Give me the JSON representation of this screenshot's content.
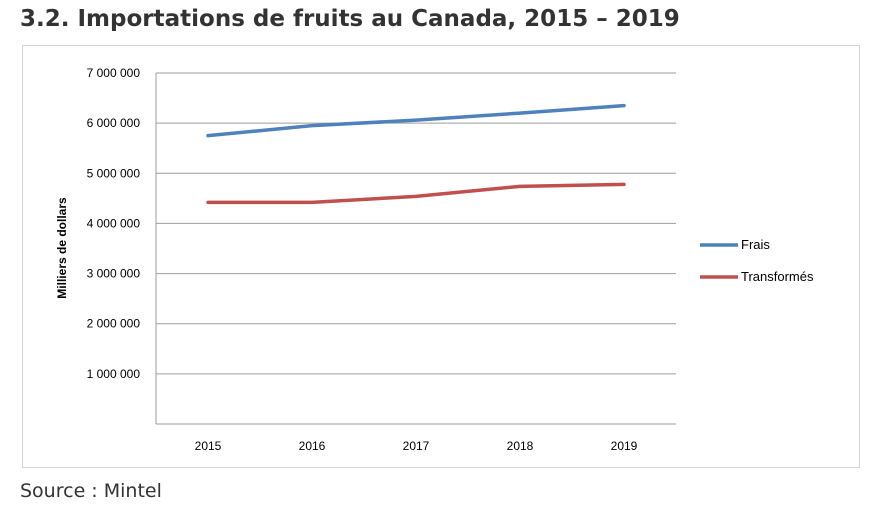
{
  "heading": "3.2. Importations de fruits au Canada, 2015 – 2019",
  "source": "Source : Mintel",
  "chart_data": {
    "type": "line",
    "title": "",
    "xlabel": "",
    "ylabel": "Milliers de dollars",
    "categories": [
      "2015",
      "2016",
      "2017",
      "2018",
      "2019"
    ],
    "ylim": [
      0,
      7000000
    ],
    "yticks": [
      1000000,
      2000000,
      3000000,
      4000000,
      5000000,
      6000000,
      7000000
    ],
    "ytick_labels": [
      "1 000 000",
      "2 000 000",
      "3 000 000",
      "4 000 000",
      "5 000 000",
      "6 000 000",
      "7 000 000"
    ],
    "grid": true,
    "legend": "right",
    "series": [
      {
        "name": "Frais",
        "color": "#4f81bd",
        "values": [
          5750000,
          5950000,
          6060000,
          6200000,
          6350000
        ]
      },
      {
        "name": "Transformés",
        "color": "#c0504d",
        "values": [
          4420000,
          4420000,
          4540000,
          4740000,
          4780000
        ]
      }
    ]
  }
}
